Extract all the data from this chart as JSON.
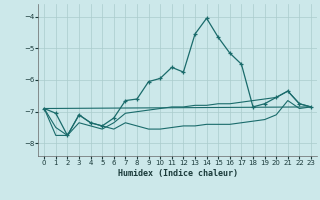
{
  "xlabel": "Humidex (Indice chaleur)",
  "background_color": "#cce8ea",
  "grid_color": "#aacccc",
  "line_color": "#1a6b6b",
  "xlim": [
    -0.5,
    23.5
  ],
  "ylim": [
    -8.4,
    -3.6
  ],
  "yticks": [
    -8,
    -7,
    -6,
    -5,
    -4
  ],
  "xticks": [
    0,
    1,
    2,
    3,
    4,
    5,
    6,
    7,
    8,
    9,
    10,
    11,
    12,
    13,
    14,
    15,
    16,
    17,
    18,
    19,
    20,
    21,
    22,
    23
  ],
  "series1": [
    [
      0,
      -6.9
    ],
    [
      1,
      -7.05
    ],
    [
      2,
      -7.75
    ],
    [
      3,
      -7.1
    ],
    [
      4,
      -7.35
    ],
    [
      5,
      -7.45
    ],
    [
      6,
      -7.2
    ],
    [
      7,
      -6.65
    ],
    [
      8,
      -6.6
    ],
    [
      9,
      -6.05
    ],
    [
      10,
      -5.95
    ],
    [
      11,
      -5.6
    ],
    [
      12,
      -5.75
    ],
    [
      13,
      -4.55
    ],
    [
      14,
      -4.05
    ],
    [
      15,
      -4.65
    ],
    [
      16,
      -5.15
    ],
    [
      17,
      -5.5
    ],
    [
      18,
      -6.85
    ],
    [
      19,
      -6.75
    ],
    [
      20,
      -6.55
    ],
    [
      21,
      -6.35
    ],
    [
      22,
      -6.75
    ],
    [
      23,
      -6.85
    ]
  ],
  "series2_x": [
    0,
    23
  ],
  "series2_y": [
    -6.9,
    -6.85
  ],
  "series3": [
    [
      0,
      -6.9
    ],
    [
      1,
      -7.75
    ],
    [
      2,
      -7.75
    ],
    [
      3,
      -7.1
    ],
    [
      4,
      -7.35
    ],
    [
      5,
      -7.45
    ],
    [
      6,
      -7.55
    ],
    [
      7,
      -7.35
    ],
    [
      8,
      -7.45
    ],
    [
      9,
      -7.55
    ],
    [
      10,
      -7.55
    ],
    [
      11,
      -7.5
    ],
    [
      12,
      -7.45
    ],
    [
      13,
      -7.45
    ],
    [
      14,
      -7.4
    ],
    [
      15,
      -7.4
    ],
    [
      16,
      -7.4
    ],
    [
      17,
      -7.35
    ],
    [
      18,
      -7.3
    ],
    [
      19,
      -7.25
    ],
    [
      20,
      -7.1
    ],
    [
      21,
      -6.65
    ],
    [
      22,
      -6.9
    ],
    [
      23,
      -6.85
    ]
  ],
  "series4": [
    [
      0,
      -6.9
    ],
    [
      1,
      -7.5
    ],
    [
      2,
      -7.75
    ],
    [
      3,
      -7.35
    ],
    [
      4,
      -7.45
    ],
    [
      5,
      -7.55
    ],
    [
      6,
      -7.35
    ],
    [
      7,
      -7.05
    ],
    [
      8,
      -7.0
    ],
    [
      9,
      -6.95
    ],
    [
      10,
      -6.9
    ],
    [
      11,
      -6.85
    ],
    [
      12,
      -6.85
    ],
    [
      13,
      -6.8
    ],
    [
      14,
      -6.8
    ],
    [
      15,
      -6.75
    ],
    [
      16,
      -6.75
    ],
    [
      17,
      -6.7
    ],
    [
      18,
      -6.65
    ],
    [
      19,
      -6.6
    ],
    [
      20,
      -6.55
    ],
    [
      21,
      -6.35
    ],
    [
      22,
      -6.75
    ],
    [
      23,
      -6.85
    ]
  ]
}
